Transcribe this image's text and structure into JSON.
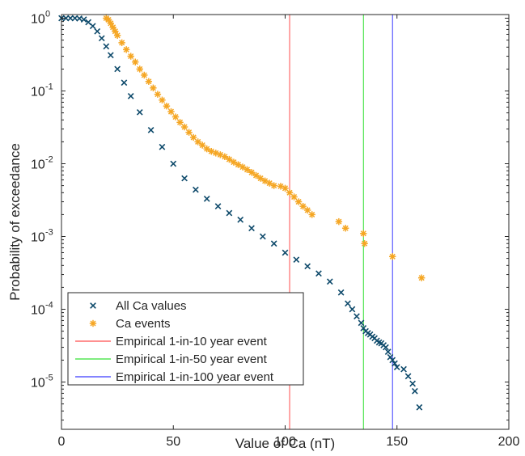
{
  "chart_data": {
    "type": "scatter",
    "xlabel": "Value of Ca (nT)",
    "ylabel": "Probability of exceedance",
    "xlim": [
      0,
      200
    ],
    "ylim": [
      2e-06,
      1
    ],
    "yscale": "log",
    "grid": false,
    "legend_position": "bottom-left",
    "x_ticks": [
      0,
      50,
      100,
      150,
      200
    ],
    "y_ticks": [
      {
        "value": 1,
        "base": "10",
        "exp": "0"
      },
      {
        "value": 0.1,
        "base": "10",
        "exp": "-1"
      },
      {
        "value": 0.01,
        "base": "10",
        "exp": "-2"
      },
      {
        "value": 0.001,
        "base": "10",
        "exp": "-3"
      },
      {
        "value": 0.0001,
        "base": "10",
        "exp": "-4"
      },
      {
        "value": 1e-05,
        "base": "10",
        "exp": "-5"
      }
    ],
    "series": [
      {
        "name": "All Ca values",
        "marker": "x",
        "color": "#0e4a6b",
        "x": [
          0,
          2,
          4,
          6,
          8,
          10,
          12,
          14,
          16,
          18,
          20,
          22,
          25,
          28,
          31,
          35,
          40,
          45,
          50,
          55,
          60,
          65,
          70,
          75,
          80,
          85,
          90,
          95,
          100,
          105,
          110,
          115,
          120,
          125,
          128,
          130,
          132,
          134,
          135,
          136,
          137,
          138,
          139,
          140,
          141,
          142,
          143,
          144,
          145,
          146,
          147,
          148,
          149,
          150,
          153,
          155,
          157,
          158,
          160
        ],
        "y": [
          1,
          1,
          1,
          1,
          0.99,
          0.96,
          0.88,
          0.78,
          0.66,
          0.53,
          0.41,
          0.31,
          0.2,
          0.13,
          0.085,
          0.051,
          0.029,
          0.017,
          0.01,
          0.0063,
          0.0044,
          0.0033,
          0.0026,
          0.0021,
          0.0017,
          0.0013,
          0.001,
          0.0008,
          0.0006,
          0.00048,
          0.00039,
          0.00031,
          0.00024,
          0.00017,
          0.00012,
          0.0001,
          8e-05,
          6.5e-05,
          5.5e-05,
          5e-05,
          4.7e-05,
          4.5e-05,
          4.2e-05,
          4e-05,
          3.7e-05,
          3.5e-05,
          3.4e-05,
          3.2e-05,
          3e-05,
          2.6e-05,
          2.2e-05,
          2e-05,
          1.8e-05,
          1.6e-05,
          1.5e-05,
          1.2e-05,
          9.5e-06,
          7.5e-06,
          4.5e-06
        ]
      },
      {
        "name": "Ca events",
        "marker": "asterisk",
        "color": "#f5a623",
        "x": [
          20,
          21,
          22,
          23,
          24,
          25,
          27,
          29,
          31,
          33,
          35,
          37,
          39,
          41,
          43,
          45,
          47,
          49,
          51,
          53,
          55,
          57,
          59,
          61,
          63,
          65,
          67,
          69,
          71,
          73,
          75,
          77,
          79,
          81,
          83,
          85,
          87,
          89,
          91,
          93,
          95,
          98,
          100,
          102,
          104,
          106,
          108,
          110,
          112,
          124,
          127,
          135,
          135.5,
          148,
          161
        ],
        "y": [
          1,
          0.95,
          0.85,
          0.75,
          0.66,
          0.58,
          0.46,
          0.37,
          0.3,
          0.25,
          0.2,
          0.165,
          0.135,
          0.11,
          0.09,
          0.075,
          0.062,
          0.052,
          0.044,
          0.037,
          0.032,
          0.027,
          0.023,
          0.02,
          0.018,
          0.016,
          0.0148,
          0.014,
          0.0133,
          0.0125,
          0.0115,
          0.0105,
          0.0097,
          0.009,
          0.0083,
          0.0076,
          0.0069,
          0.0063,
          0.0058,
          0.0054,
          0.005,
          0.0049,
          0.0046,
          0.004,
          0.0035,
          0.003,
          0.0026,
          0.0023,
          0.002,
          0.0016,
          0.0013,
          0.0011,
          0.0008,
          0.00053,
          0.00027
        ]
      }
    ],
    "vlines": [
      {
        "name": "Empirical 1-in-10 year event",
        "x": 102,
        "color": "#ff4d4d"
      },
      {
        "name": "Empirical 1-in-50 year event",
        "x": 135,
        "color": "#33e033"
      },
      {
        "name": "Empirical 1-in-100 year event",
        "x": 148,
        "color": "#3a3aff"
      }
    ]
  }
}
